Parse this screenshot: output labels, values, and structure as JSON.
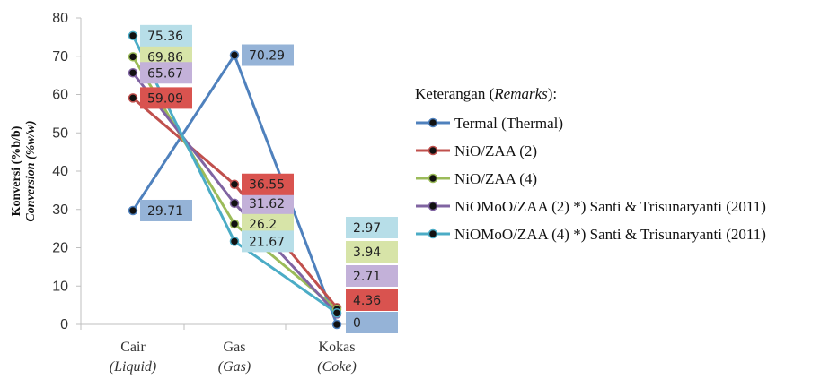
{
  "chart_data": {
    "type": "line",
    "categories": [
      "Cair",
      "Gas",
      "Kokas"
    ],
    "categories_sub": [
      "(Liquid)",
      "(Gas)",
      "(Coke)"
    ],
    "ylabel": "Konversi (%b/b)",
    "ylabel_sub": "Conversion (%w/w)",
    "ylim": [
      0,
      80
    ],
    "yticks": [
      0,
      10,
      20,
      30,
      40,
      50,
      60,
      70,
      80
    ],
    "grid": false,
    "legend_title": "Keterangan (Remarks):",
    "legend_position": "right",
    "series": [
      {
        "name": "Termal (Thermal)",
        "values": [
          29.71,
          70.29,
          0
        ],
        "color": "#4F81BD",
        "label_bg": "#95B3D7",
        "labels": [
          "29.71",
          "70.29",
          "0"
        ]
      },
      {
        "name": "NiO/ZAA (2)",
        "values": [
          59.09,
          36.55,
          4.36
        ],
        "color": "#C0504D",
        "label_bg": "#D9534F",
        "labels": [
          "59.09",
          "36.55",
          "4.36"
        ]
      },
      {
        "name": "NiO/ZAA (4)",
        "values": [
          69.86,
          26.2,
          3.94
        ],
        "color": "#9BBB59",
        "label_bg": "#D7E4A8",
        "labels": [
          "69.86",
          "26.2",
          "3.94"
        ]
      },
      {
        "name": "NiOMoO/ZAA (2) *) Santi & Trisunaryanti (2011)",
        "values": [
          65.67,
          31.62,
          2.71
        ],
        "color": "#8064A2",
        "label_bg": "#C3B1D9",
        "labels": [
          "65.67",
          "31.62",
          "2.71"
        ]
      },
      {
        "name": "NiOMoO/ZAA (4) *) Santi & Trisunaryanti (2011)",
        "values": [
          75.36,
          21.67,
          2.97
        ],
        "color": "#4BACC6",
        "label_bg": "#B7DEE8",
        "labels": [
          "75.36",
          "21.67",
          "2.97"
        ]
      }
    ]
  }
}
